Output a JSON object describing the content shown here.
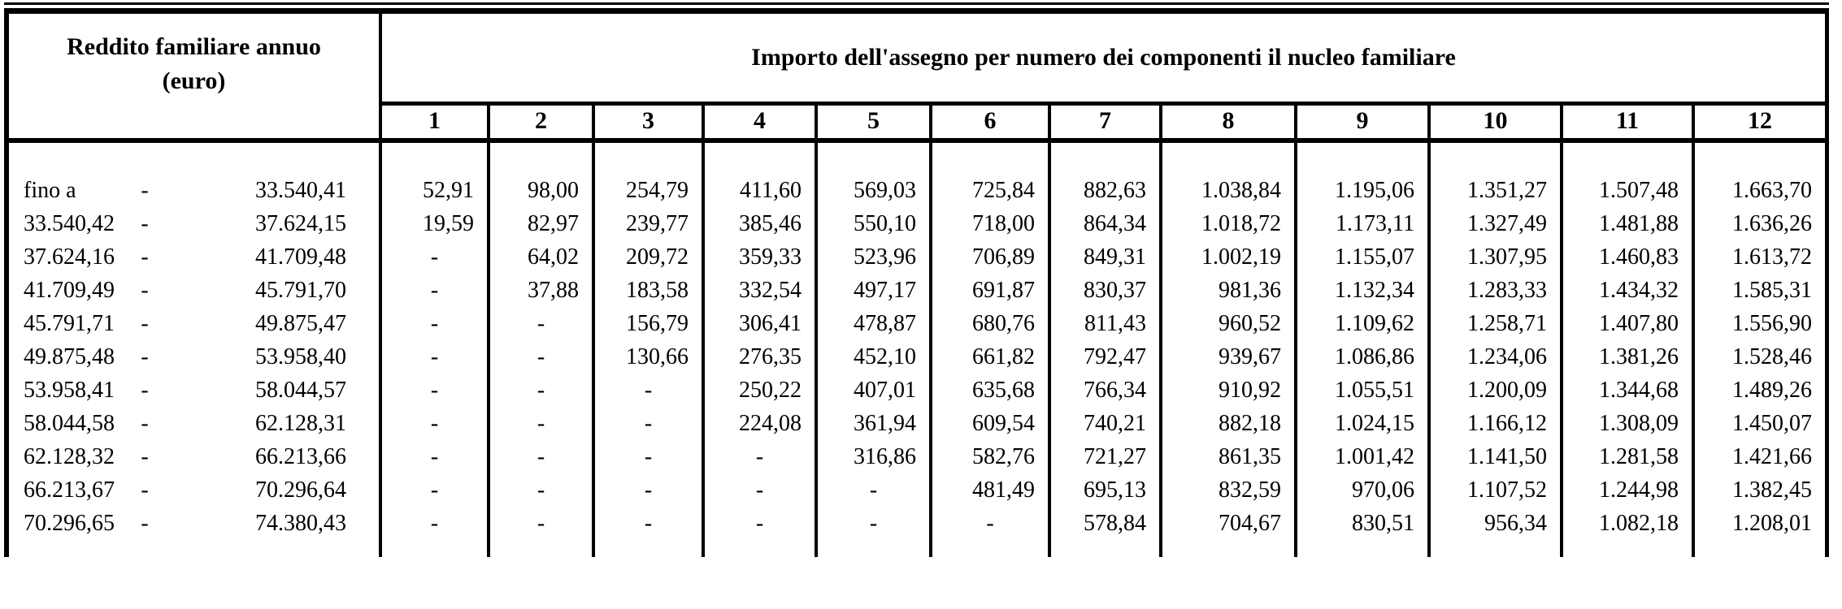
{
  "table": {
    "header": {
      "income_title_line1": "Reddito familiare annuo",
      "income_title_line2": "(euro)",
      "main_title": "Importo dell'assegno per numero dei componenti il nucleo familiare",
      "component_counts": [
        "1",
        "2",
        "3",
        "4",
        "5",
        "6",
        "7",
        "8",
        "9",
        "10",
        "11",
        "12"
      ]
    },
    "rows": [
      {
        "range_low": "fino a",
        "range_dash": "-",
        "range_high": "33.540,41",
        "values": [
          "52,91",
          "98,00",
          "254,79",
          "411,60",
          "569,03",
          "725,84",
          "882,63",
          "1.038,84",
          "1.195,06",
          "1.351,27",
          "1.507,48",
          "1.663,70"
        ]
      },
      {
        "range_low": "33.540,42",
        "range_dash": "-",
        "range_high": "37.624,15",
        "values": [
          "19,59",
          "82,97",
          "239,77",
          "385,46",
          "550,10",
          "718,00",
          "864,34",
          "1.018,72",
          "1.173,11",
          "1.327,49",
          "1.481,88",
          "1.636,26"
        ]
      },
      {
        "range_low": "37.624,16",
        "range_dash": "-",
        "range_high": "41.709,48",
        "values": [
          "-",
          "64,02",
          "209,72",
          "359,33",
          "523,96",
          "706,89",
          "849,31",
          "1.002,19",
          "1.155,07",
          "1.307,95",
          "1.460,83",
          "1.613,72"
        ]
      },
      {
        "range_low": "41.709,49",
        "range_dash": "-",
        "range_high": "45.791,70",
        "values": [
          "-",
          "37,88",
          "183,58",
          "332,54",
          "497,17",
          "691,87",
          "830,37",
          "981,36",
          "1.132,34",
          "1.283,33",
          "1.434,32",
          "1.585,31"
        ]
      },
      {
        "range_low": "45.791,71",
        "range_dash": "-",
        "range_high": "49.875,47",
        "values": [
          "-",
          "-",
          "156,79",
          "306,41",
          "478,87",
          "680,76",
          "811,43",
          "960,52",
          "1.109,62",
          "1.258,71",
          "1.407,80",
          "1.556,90"
        ]
      },
      {
        "range_low": "49.875,48",
        "range_dash": "-",
        "range_high": "53.958,40",
        "values": [
          "-",
          "-",
          "130,66",
          "276,35",
          "452,10",
          "661,82",
          "792,47",
          "939,67",
          "1.086,86",
          "1.234,06",
          "1.381,26",
          "1.528,46"
        ]
      },
      {
        "range_low": "53.958,41",
        "range_dash": "-",
        "range_high": "58.044,57",
        "values": [
          "-",
          "-",
          "-",
          "250,22",
          "407,01",
          "635,68",
          "766,34",
          "910,92",
          "1.055,51",
          "1.200,09",
          "1.344,68",
          "1.489,26"
        ]
      },
      {
        "range_low": "58.044,58",
        "range_dash": "-",
        "range_high": "62.128,31",
        "values": [
          "-",
          "-",
          "-",
          "224,08",
          "361,94",
          "609,54",
          "740,21",
          "882,18",
          "1.024,15",
          "1.166,12",
          "1.308,09",
          "1.450,07"
        ]
      },
      {
        "range_low": "62.128,32",
        "range_dash": "-",
        "range_high": "66.213,66",
        "values": [
          "-",
          "-",
          "-",
          "-",
          "316,86",
          "582,76",
          "721,27",
          "861,35",
          "1.001,42",
          "1.141,50",
          "1.281,58",
          "1.421,66"
        ]
      },
      {
        "range_low": "66.213,67",
        "range_dash": "-",
        "range_high": "70.296,64",
        "values": [
          "-",
          "-",
          "-",
          "-",
          "-",
          "481,49",
          "695,13",
          "832,59",
          "970,06",
          "1.107,52",
          "1.244,98",
          "1.382,45"
        ]
      },
      {
        "range_low": "70.296,65",
        "range_dash": "-",
        "range_high": "74.380,43",
        "values": [
          "-",
          "-",
          "-",
          "-",
          "-",
          "-",
          "578,84",
          "704,67",
          "830,51",
          "956,34",
          "1.082,18",
          "1.208,01"
        ]
      }
    ]
  }
}
